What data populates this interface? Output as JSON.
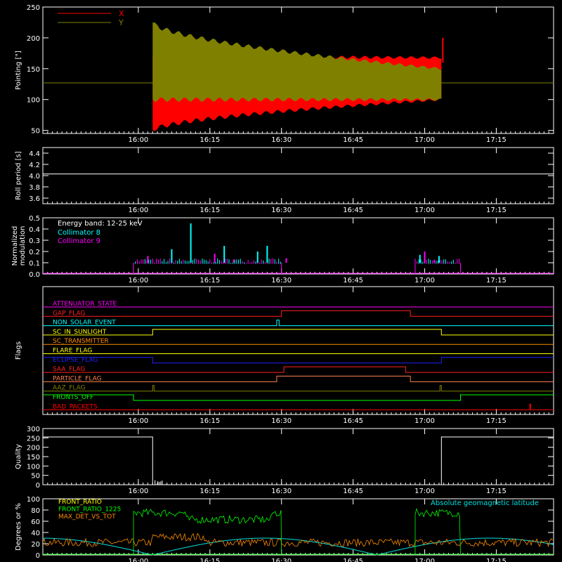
{
  "chart_data": [
    {
      "type": "line",
      "ylabel": "Pointing [\"]",
      "ylim": [
        45,
        250
      ],
      "yticks": [
        50,
        100,
        150,
        200,
        250
      ],
      "xticks": [
        "16:00",
        "16:15",
        "16:30",
        "16:45",
        "17:00",
        "17:15"
      ],
      "xlim_minutes": [
        -20,
        87
      ],
      "legend": "top-left",
      "series": [
        {
          "name": "X",
          "color": "#ff0000",
          "flat": 127,
          "start": 3,
          "end": 63.5,
          "upper_start": 170,
          "upper_end": 168,
          "lower_start": 50,
          "lower_end": 100
        },
        {
          "name": "Y",
          "color": "#808000",
          "flat": 127,
          "start": 3,
          "end": 63.5,
          "upper_start": 225,
          "upper_end": 150,
          "lower_start": 100,
          "lower_end": 100
        }
      ]
    },
    {
      "type": "line",
      "ylabel": "Roll period [s]",
      "ylim": [
        3.5,
        4.5
      ],
      "yticks": [
        "3.6",
        "3.8",
        "4.0",
        "4.2",
        "4.4"
      ],
      "xticks": [
        "16:00",
        "16:15",
        "16:30",
        "16:45",
        "17:00",
        "17:15"
      ],
      "series": [
        {
          "name": "",
          "color": "#ffffff",
          "value": 4.03
        }
      ]
    },
    {
      "type": "bar",
      "ylabel": "Normalized modulation",
      "ylim": [
        0,
        0.5
      ],
      "yticks": [
        "0.0",
        "0.1",
        "0.2",
        "0.3",
        "0.4",
        "0.5"
      ],
      "xticks": [
        "16:00",
        "16:15",
        "16:30",
        "16:45",
        "17:00",
        "17:15"
      ],
      "annotation": "Energy band: 12-25 keV",
      "series": [
        {
          "name": "Collimator 8",
          "color": "#00ffff",
          "spikes": [
            [
              11,
              0.45
            ],
            [
              18,
              0.25
            ],
            [
              7,
              0.22
            ],
            [
              25,
              0.2
            ],
            [
              27,
              0.25
            ],
            [
              59,
              0.17
            ],
            [
              63,
              0.16
            ]
          ]
        },
        {
          "name": "Collimator 9",
          "color": "#ff00ff",
          "spikes": [
            [
              2,
              0.16
            ],
            [
              16,
              0.18
            ],
            [
              20,
              0.13
            ],
            [
              31,
              0.14
            ],
            [
              60,
              0.2
            ],
            [
              62,
              0.12
            ]
          ]
        }
      ],
      "windows": [
        [
          -1,
          30
        ],
        [
          58,
          67.5
        ]
      ],
      "base": 0.1
    },
    {
      "type": "line",
      "ylabel": "Flags",
      "xticks": [
        "16:00",
        "16:15",
        "16:30",
        "16:45",
        "17:00",
        "17:15"
      ],
      "flags": [
        {
          "name": "ATTENUATOR_STATE",
          "color": "#ff00ff",
          "steps": []
        },
        {
          "name": "GAP_FLAG",
          "color": "#ff2020",
          "steps": [
            [
              30,
              57
            ]
          ]
        },
        {
          "name": "NON_SOLAR_EVENT",
          "color": "#00ffff",
          "steps": [
            [
              29,
              29.5
            ]
          ]
        },
        {
          "name": "SC_IN_SUNLIGHT",
          "color": "#ffff00",
          "steps": [
            [
              3,
              63.5
            ]
          ]
        },
        {
          "name": "SC_TRANSMITTER",
          "color": "#ff8c00",
          "steps": []
        },
        {
          "name": "FLARE_FLAG",
          "color": "#ffff00",
          "steps": []
        },
        {
          "name": "ECLIPSE_FLAG",
          "color": "#2020ff",
          "steps": [
            [
              3,
              63.5
            ]
          ],
          "inverted": true
        },
        {
          "name": "SAA_FLAG",
          "color": "#ff2020",
          "steps": [
            [
              30.5,
              56
            ]
          ]
        },
        {
          "name": "PARTICLE_FLAG",
          "color": "#ff7f50",
          "steps": [
            [
              29,
              57
            ]
          ]
        },
        {
          "name": "AAZ_FLAG",
          "color": "#808000",
          "steps": [
            [
              3,
              3.3
            ],
            [
              63.2,
              63.5
            ]
          ]
        },
        {
          "name": "FRONTS_OFF",
          "color": "#00ff00",
          "steps": [
            [
              -1,
              67.5
            ]
          ],
          "inverted": true
        },
        {
          "name": "BAD_PACKETS",
          "color": "#ff0000",
          "steps": [
            [
              82,
              82.2
            ]
          ]
        }
      ]
    },
    {
      "type": "line",
      "ylabel": "Quality",
      "ylim": [
        0,
        300
      ],
      "yticks": [
        0,
        50,
        100,
        150,
        200,
        250,
        300
      ],
      "xticks": [
        "16:00",
        "16:15",
        "16:30",
        "16:45",
        "17:00",
        "17:15"
      ],
      "series": [
        {
          "name": "",
          "color": "#ffffff",
          "high": 255,
          "low": 0,
          "drop": 3,
          "rise": 63.5
        }
      ]
    },
    {
      "type": "line",
      "ylabel": "Degrees or %",
      "ylim": [
        0,
        100
      ],
      "yticks": [
        0,
        20,
        40,
        60,
        80,
        100
      ],
      "xticks": [
        "16:00",
        "16:15",
        "16:30",
        "16:45",
        "17:00",
        "17:15"
      ],
      "annotation": "Absolute geomagnetic latitude",
      "series": [
        {
          "name": "FRONT_RATIO",
          "color": "#ffff00"
        },
        {
          "name": "FRONT_RATIO_1225",
          "color": "#00ff00",
          "level": 75,
          "windows": [
            [
              -1,
              30
            ],
            [
              58,
              67.5
            ]
          ]
        },
        {
          "name": "MAX_DET_VS_TOT",
          "color": "#ff8c00",
          "level": 22
        },
        {
          "name": "Absolute geomagnetic latitude",
          "color": "#00e0e0",
          "wave": true
        }
      ]
    }
  ]
}
